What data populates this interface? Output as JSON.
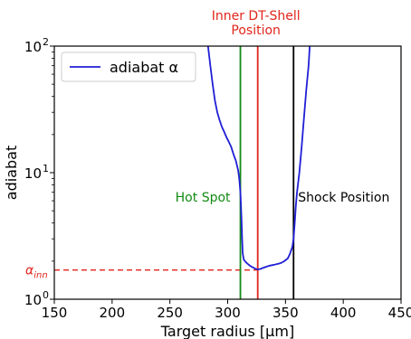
{
  "chart_data": {
    "type": "line",
    "xlabel": "Target radius [μm]",
    "ylabel": "adiabat",
    "xlim": [
      150,
      450
    ],
    "ylim": [
      1,
      100
    ],
    "yscale": "log",
    "x_ticks": [
      150,
      200,
      250,
      300,
      350,
      400,
      450
    ],
    "y_ticks": [
      {
        "value": 1,
        "label": "10",
        "exp": "0"
      },
      {
        "value": 10,
        "label": "10",
        "exp": "1"
      },
      {
        "value": 100,
        "label": "10",
        "exp": "2"
      }
    ],
    "grid": false,
    "legend": {
      "position": "top-left",
      "label": "adiabat α"
    },
    "series": [
      {
        "name": "adiabat α",
        "color": "#1f1fd6",
        "points": [
          [
            283,
            100
          ],
          [
            285,
            70
          ],
          [
            287,
            50
          ],
          [
            289,
            37
          ],
          [
            291,
            30
          ],
          [
            293,
            26
          ],
          [
            295,
            23
          ],
          [
            297,
            21
          ],
          [
            299,
            19
          ],
          [
            301,
            17.5
          ],
          [
            303,
            16
          ],
          [
            305,
            14
          ],
          [
            307,
            12.5
          ],
          [
            309,
            10.5
          ],
          [
            310,
            9
          ],
          [
            311,
            7
          ],
          [
            311.5,
            5.5
          ],
          [
            312,
            4.2
          ],
          [
            312.5,
            3
          ],
          [
            313,
            2.3
          ],
          [
            314,
            2.05
          ],
          [
            316,
            1.95
          ],
          [
            318,
            1.88
          ],
          [
            320,
            1.82
          ],
          [
            322,
            1.78
          ],
          [
            324,
            1.74
          ],
          [
            326,
            1.72
          ],
          [
            328,
            1.73
          ],
          [
            330,
            1.76
          ],
          [
            333,
            1.8
          ],
          [
            336,
            1.84
          ],
          [
            340,
            1.87
          ],
          [
            343,
            1.9
          ],
          [
            346,
            1.93
          ],
          [
            349,
            2.0
          ],
          [
            352,
            2.1
          ],
          [
            354,
            2.3
          ],
          [
            356,
            2.6
          ],
          [
            357,
            3.0
          ],
          [
            358,
            4
          ],
          [
            359,
            5.5
          ],
          [
            360,
            7
          ],
          [
            362,
            10
          ],
          [
            364,
            16
          ],
          [
            366,
            27
          ],
          [
            368,
            45
          ],
          [
            370,
            70
          ],
          [
            371,
            100
          ]
        ]
      }
    ],
    "vlines": [
      {
        "x": 311,
        "color": "#138a13",
        "label": "Hot Spot"
      },
      {
        "x": 326,
        "color": "#e0251b",
        "label": "Inner DT-Shell\nPosition"
      },
      {
        "x": 357,
        "color": "#000000",
        "label": "Shock Position"
      }
    ],
    "hline": {
      "y": 1.7,
      "x_end": 326,
      "color": "#e0251b",
      "style": "dashed",
      "label": "α_inn"
    }
  }
}
